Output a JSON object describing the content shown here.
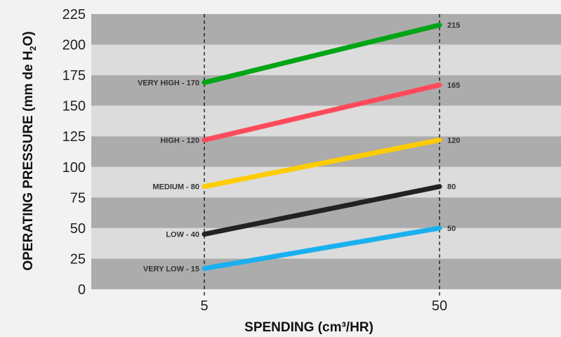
{
  "chart_data": {
    "type": "line",
    "x": [
      "5",
      "50"
    ],
    "xlabel": "SPENDING (cm³/HR)",
    "ylabel_parts": [
      "OPERATING PRESSURE (mm de H",
      "2",
      "O)"
    ],
    "ylim": [
      0,
      225
    ],
    "yticks": [
      0,
      25,
      50,
      75,
      100,
      125,
      150,
      175,
      200,
      225
    ],
    "grid": "alternating horizontal bands",
    "series": [
      {
        "name": "VERY LOW",
        "start_label": "VERY LOW  -  15",
        "end_label": "50",
        "values": [
          17,
          50
        ],
        "color": "#1ab0ef"
      },
      {
        "name": "LOW",
        "start_label": "LOW  -  40",
        "end_label": "80",
        "values": [
          45,
          84
        ],
        "color": "#222222"
      },
      {
        "name": "MEDIUM",
        "start_label": "MEDIUM  -  80",
        "end_label": "120",
        "values": [
          84,
          122
        ],
        "color": "#ffcc00"
      },
      {
        "name": "HIGH",
        "start_label": "HIGH  -  120",
        "end_label": "165",
        "values": [
          122,
          167
        ],
        "color": "#ff4a5a"
      },
      {
        "name": "VERY HIGH",
        "start_label": "VERY HIGH  -  170",
        "end_label": "215",
        "values": [
          169,
          216
        ],
        "color": "#00a516"
      }
    ]
  }
}
